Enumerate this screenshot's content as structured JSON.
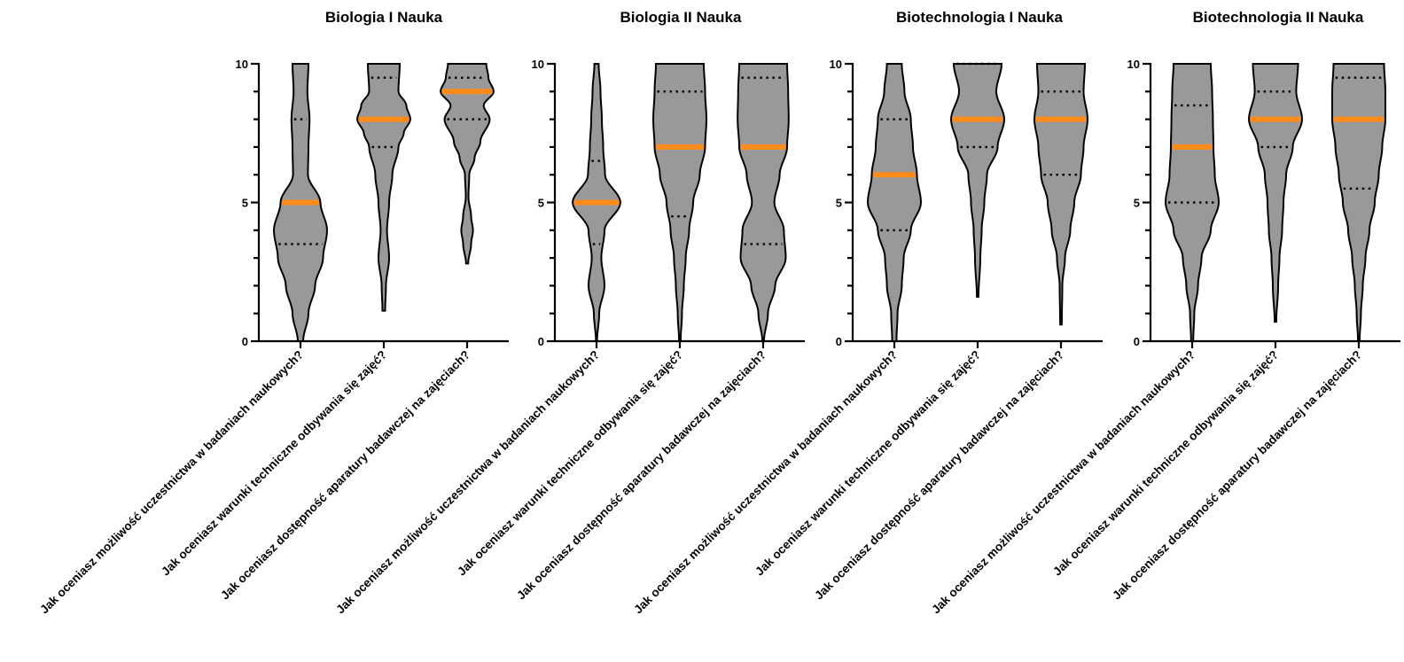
{
  "chart_data": [
    {
      "type": "violin",
      "title": "Biologia I Nauka",
      "ylim": [
        0,
        10
      ],
      "yticks": [
        0,
        5,
        10
      ],
      "ytick_labels": [
        "0",
        "5",
        "10"
      ],
      "colors": {
        "violin": "#999999",
        "median": "#ff8c1a",
        "outline": "#000000"
      },
      "categories": [
        "Jak oceniasz możliwość uczestnictwa w badaniach naukowych?",
        "Jak oceniasz warunki techniczne odbywania się zajęć?",
        "Jak oceniasz dostępność aparatury badawczej na zajęciach?"
      ],
      "series": [
        {
          "min": 0,
          "max": 10,
          "median": 5,
          "q1": 3.5,
          "q3": 8,
          "density": [
            [
              0,
              0.1
            ],
            [
              1,
              0.3
            ],
            [
              2,
              0.55
            ],
            [
              3,
              0.85
            ],
            [
              4,
              1.0
            ],
            [
              5,
              0.75
            ],
            [
              6,
              0.28
            ],
            [
              7,
              0.3
            ],
            [
              8,
              0.34
            ],
            [
              9,
              0.26
            ],
            [
              10,
              0.3
            ]
          ]
        },
        {
          "min": 1.1,
          "max": 10,
          "median": 8,
          "q1": 7,
          "q3": 9.5,
          "density": [
            [
              1.1,
              0.05
            ],
            [
              2,
              0.08
            ],
            [
              3,
              0.2
            ],
            [
              4,
              0.12
            ],
            [
              5,
              0.2
            ],
            [
              6,
              0.32
            ],
            [
              7,
              0.55
            ],
            [
              7.5,
              0.75
            ],
            [
              8,
              1.0
            ],
            [
              8.5,
              0.85
            ],
            [
              9,
              0.55
            ],
            [
              10,
              0.6
            ]
          ]
        },
        {
          "min": 2.8,
          "max": 10,
          "median": 9,
          "q1": 8,
          "q3": 9.5,
          "density": [
            [
              2.8,
              0.04
            ],
            [
              3.5,
              0.15
            ],
            [
              4,
              0.22
            ],
            [
              4.5,
              0.15
            ],
            [
              5.2,
              0.05
            ],
            [
              6,
              0.08
            ],
            [
              6.6,
              0.28
            ],
            [
              7.2,
              0.5
            ],
            [
              8,
              0.85
            ],
            [
              8.5,
              0.62
            ],
            [
              9,
              1.0
            ],
            [
              9.5,
              0.8
            ],
            [
              10,
              0.72
            ]
          ]
        }
      ]
    },
    {
      "type": "violin",
      "title": "Biologia II Nauka",
      "ylim": [
        0,
        10
      ],
      "yticks": [
        0,
        5,
        10
      ],
      "ytick_labels": [
        "0",
        "5",
        "10"
      ],
      "colors": {
        "violin": "#999999",
        "median": "#ff8c1a",
        "outline": "#000000"
      },
      "categories": [
        "Jak oceniasz możliwość uczestnictwa w badaniach naukowych?",
        "Jak oceniasz warunki techniczne odbywania się zajęć?",
        "Jak oceniasz dostępność aparatury badawczej na zajęciach?"
      ],
      "series": [
        {
          "min": 0,
          "max": 10,
          "median": 5,
          "q1": 3.5,
          "q3": 6.5,
          "density": [
            [
              0,
              0.02
            ],
            [
              1,
              0.1
            ],
            [
              2,
              0.3
            ],
            [
              3,
              0.18
            ],
            [
              4,
              0.3
            ],
            [
              5,
              0.9
            ],
            [
              6,
              0.32
            ],
            [
              7,
              0.25
            ],
            [
              8,
              0.2
            ],
            [
              9,
              0.15
            ],
            [
              10,
              0.08
            ]
          ]
        },
        {
          "min": 0,
          "max": 10,
          "median": 7,
          "q1": 4.5,
          "q3": 9,
          "density": [
            [
              0,
              0.03
            ],
            [
              1,
              0.08
            ],
            [
              2,
              0.15
            ],
            [
              3,
              0.22
            ],
            [
              4,
              0.35
            ],
            [
              5,
              0.5
            ],
            [
              6,
              0.75
            ],
            [
              7,
              0.95
            ],
            [
              8,
              1.0
            ],
            [
              9,
              0.95
            ],
            [
              10,
              0.9
            ]
          ]
        },
        {
          "min": 0,
          "max": 10,
          "median": 7,
          "q1": 3.5,
          "q3": 9.5,
          "density": [
            [
              0,
              0.03
            ],
            [
              1,
              0.18
            ],
            [
              2,
              0.45
            ],
            [
              3,
              0.85
            ],
            [
              4,
              0.78
            ],
            [
              5,
              0.42
            ],
            [
              6,
              0.62
            ],
            [
              7,
              0.9
            ],
            [
              8,
              0.96
            ],
            [
              9,
              0.94
            ],
            [
              10,
              0.9
            ]
          ]
        }
      ]
    },
    {
      "type": "violin",
      "title": "Biotechnologia I Nauka",
      "ylim": [
        0,
        10
      ],
      "yticks": [
        0,
        5,
        10
      ],
      "ytick_labels": [
        "0",
        "5",
        "10"
      ],
      "colors": {
        "violin": "#999999",
        "median": "#ff8c1a",
        "outline": "#000000"
      },
      "categories": [
        "Jak oceniasz możliwość uczestnictwa w badaniach naukowych?",
        "Jak oceniasz warunki techniczne odbywania się zajęć?",
        "Jak oceniasz dostępność aparatury badawczej na zajęciach?"
      ],
      "series": [
        {
          "min": 0,
          "max": 10,
          "median": 6,
          "q1": 4,
          "q3": 8,
          "density": [
            [
              0,
              0.08
            ],
            [
              1,
              0.12
            ],
            [
              2,
              0.28
            ],
            [
              3,
              0.35
            ],
            [
              4,
              0.62
            ],
            [
              5,
              1.0
            ],
            [
              6,
              0.85
            ],
            [
              7,
              0.7
            ],
            [
              8,
              0.62
            ],
            [
              9,
              0.38
            ],
            [
              10,
              0.28
            ]
          ]
        },
        {
          "min": 1.6,
          "max": 10,
          "median": 8,
          "q1": 7,
          "q3": 10,
          "density": [
            [
              1.6,
              0.03
            ],
            [
              3,
              0.1
            ],
            [
              4,
              0.15
            ],
            [
              5,
              0.25
            ],
            [
              6,
              0.35
            ],
            [
              7,
              0.75
            ],
            [
              8,
              1.0
            ],
            [
              9,
              0.7
            ],
            [
              10,
              0.9
            ]
          ]
        },
        {
          "min": 0.6,
          "max": 10,
          "median": 8,
          "q1": 6,
          "q3": 9,
          "density": [
            [
              0.6,
              0.03
            ],
            [
              2,
              0.05
            ],
            [
              3,
              0.15
            ],
            [
              4,
              0.35
            ],
            [
              5,
              0.5
            ],
            [
              6,
              0.75
            ],
            [
              7,
              0.85
            ],
            [
              8,
              1.0
            ],
            [
              9,
              0.85
            ],
            [
              10,
              0.9
            ]
          ]
        }
      ]
    },
    {
      "type": "violin",
      "title": "Biotechnologia II Nauka",
      "ylim": [
        0,
        10
      ],
      "yticks": [
        0,
        5,
        10
      ],
      "ytick_labels": [
        "0",
        "5",
        "10"
      ],
      "colors": {
        "violin": "#999999",
        "median": "#ff8c1a",
        "outline": "#000000"
      },
      "categories": [
        "Jak oceniasz możliwość uczestnictwa w badaniach naukowych?",
        "Jak oceniasz warunki techniczne odbywania się zajęć?",
        "Jak oceniasz dostępność aparatury badawczej na zajęciach?"
      ],
      "series": [
        {
          "min": 0,
          "max": 10,
          "median": 7,
          "q1": 5,
          "q3": 8.5,
          "density": [
            [
              0,
              0.04
            ],
            [
              1,
              0.08
            ],
            [
              2,
              0.22
            ],
            [
              3,
              0.35
            ],
            [
              4,
              0.7
            ],
            [
              5,
              1.0
            ],
            [
              6,
              0.85
            ],
            [
              7,
              0.8
            ],
            [
              8,
              0.78
            ],
            [
              9,
              0.75
            ],
            [
              10,
              0.7
            ]
          ]
        },
        {
          "min": 0.7,
          "max": 10,
          "median": 8,
          "q1": 7,
          "q3": 9,
          "density": [
            [
              0.7,
              0.03
            ],
            [
              2,
              0.1
            ],
            [
              3,
              0.15
            ],
            [
              4,
              0.25
            ],
            [
              5,
              0.3
            ],
            [
              6,
              0.4
            ],
            [
              7,
              0.65
            ],
            [
              8,
              1.0
            ],
            [
              9,
              0.78
            ],
            [
              10,
              0.85
            ]
          ]
        },
        {
          "min": 0,
          "max": 10,
          "median": 8,
          "q1": 5.5,
          "q3": 9.5,
          "density": [
            [
              0,
              0.03
            ],
            [
              1,
              0.08
            ],
            [
              2,
              0.15
            ],
            [
              3,
              0.25
            ],
            [
              4,
              0.4
            ],
            [
              5,
              0.6
            ],
            [
              6,
              0.75
            ],
            [
              7,
              0.88
            ],
            [
              8,
              1.0
            ],
            [
              9,
              1.0
            ],
            [
              10,
              0.95
            ]
          ]
        }
      ]
    }
  ]
}
